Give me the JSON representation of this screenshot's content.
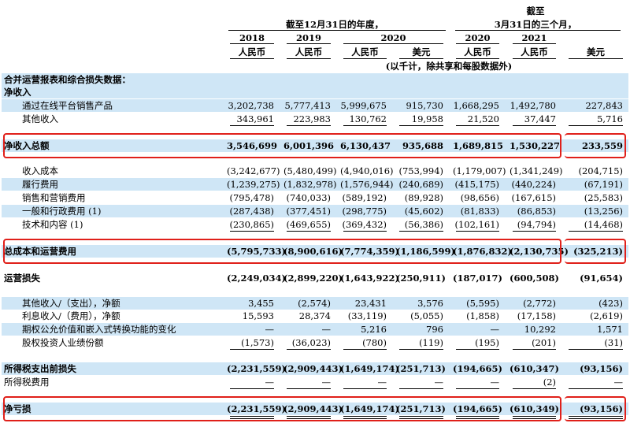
{
  "header": {
    "period_year": "截至12月31日的年度，",
    "period_quarter_top": "截至",
    "period_quarter_bottom": "3月31日的三个月，",
    "years": [
      "2018",
      "2019",
      "2020",
      "2020",
      "2021"
    ],
    "currencies": [
      "人民币",
      "人民币",
      "人民币",
      "美元",
      "人民币",
      "人民币",
      "美元"
    ],
    "unit_note": "(以千计，除共享和每股数据外)"
  },
  "section_title": "合并运营报表和综合损失数据：",
  "rows": [
    {
      "label": "净收入",
      "bold": true,
      "values": [
        "",
        "",
        "",
        "",
        "",
        "",
        ""
      ]
    },
    {
      "label": "通过在线平台销售产品",
      "values": [
        "3,202,738",
        "5,777,413",
        "5,999,675",
        "915,730",
        "1,668,295",
        "1,492,780",
        "227,843"
      ]
    },
    {
      "label": "其他收入",
      "values": [
        "343,961",
        "223,983",
        "130,762",
        "19,958",
        "21,520",
        "37,447",
        "5,716"
      ]
    },
    {
      "label": "净收入总额",
      "bold": true,
      "values": [
        "3,546,699",
        "6,001,396",
        "6,130,437",
        "935,688",
        "1,689,815",
        "1,530,227",
        "233,559"
      ]
    },
    {
      "label": "收入成本",
      "values": [
        "(3,242,677)",
        "(5,480,499)",
        "(4,940,016)",
        "(753,994)",
        "(1,179,007)",
        "(1,341,249)",
        "(204,715)"
      ]
    },
    {
      "label": "履行费用",
      "values": [
        "(1,239,275)",
        "(1,832,978)",
        "(1,576,944)",
        "(240,689)",
        "(415,175)",
        "(440,224)",
        "(67,191)"
      ]
    },
    {
      "label": "销售和营销费用",
      "values": [
        "(795,478)",
        "(740,033)",
        "(589,192)",
        "(89,928)",
        "(98,656)",
        "(167,615)",
        "(25,583)"
      ]
    },
    {
      "label": "一般和行政费用 (1)",
      "values": [
        "(287,438)",
        "(377,451)",
        "(298,775)",
        "(45,602)",
        "(81,833)",
        "(86,853)",
        "(13,256)"
      ]
    },
    {
      "label": "技术和内容 (1)",
      "values": [
        "(230,865)",
        "(469,655)",
        "(369,432)",
        "(56,386)",
        "(102,161)",
        "(94,794)",
        "(14,468)"
      ]
    },
    {
      "label": "总成本和运营费用",
      "bold": true,
      "values": [
        "(5,795,733)",
        "(8,900,616)",
        "(7,774,359)",
        "(1,186,599)",
        "(1,876,832)",
        "(2,130,735)",
        "(325,213)"
      ]
    },
    {
      "label": "运营损失",
      "bold": true,
      "values": [
        "(2,249,034)",
        "(2,899,220)",
        "(1,643,922)",
        "(250,911)",
        "(187,017)",
        "(600,508)",
        "(91,654)"
      ]
    },
    {
      "label": "其他收入/（支出），净额",
      "values": [
        "3,455",
        "(2,574)",
        "23,431",
        "3,576",
        "(5,595)",
        "(2,772)",
        "(423)"
      ]
    },
    {
      "label": "利息收入/（费用），净额",
      "values": [
        "15,593",
        "28,374",
        "(33,119)",
        "(5,055)",
        "(1,858)",
        "(17,158)",
        "(2,619)"
      ]
    },
    {
      "label": "期权公允价值和嵌入式转换功能的变化",
      "values": [
        "—",
        "—",
        "5,216",
        "796",
        "—",
        "10,292",
        "1,571"
      ]
    },
    {
      "label": "股权投资人业绩份额",
      "values": [
        "(1,573)",
        "(36,023)",
        "(780)",
        "(119)",
        "(195)",
        "(201)",
        "(31)"
      ]
    },
    {
      "label": "所得税支出前损失",
      "bold": true,
      "values": [
        "(2,231,559)",
        "(2,909,443)",
        "(1,649,174)",
        "(251,713)",
        "(194,665)",
        "(610,347)",
        "(93,156)"
      ]
    },
    {
      "label": "所得税费用",
      "values": [
        "—",
        "—",
        "—",
        "—",
        "—",
        "(2)",
        "—"
      ]
    },
    {
      "label": "净亏损",
      "bold": true,
      "values": [
        "(2,231,559)",
        "(2,909,443)",
        "(1,649,174)",
        "(251,713)",
        "(194,665)",
        "(610,349)",
        "(93,156)"
      ]
    }
  ],
  "colors": {
    "band": "#cfe6f6",
    "highlight_box": "#e0201a"
  }
}
